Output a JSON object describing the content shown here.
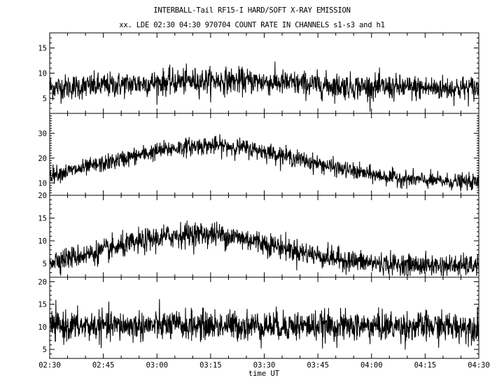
{
  "header": {
    "title": "INTERBALL-Tail RF15-I HARD/SOFT X-RAY EMISSION",
    "subtitle": "xx. LDE 02:30 04:30 970704  COUNT RATE IN CHANNELS s1-s3 and h1"
  },
  "chart_data": {
    "type": "line",
    "title": "INTERBALL-Tail RF15-I HARD/SOFT X-RAY EMISSION",
    "subtitle": "xx. LDE 02:30 04:30 970704  COUNT RATE IN CHANNELS s1-s3 and h1",
    "xlabel": "time UT",
    "xlim": [
      "02:30",
      "04:30"
    ],
    "x_ticks": [
      "02:30",
      "02:45",
      "03:00",
      "03:15",
      "03:30",
      "03:45",
      "04:00",
      "04:15",
      "04:30"
    ],
    "grid": false,
    "panels": [
      {
        "ylim": [
          2,
          18
        ],
        "y_ticks": [
          5,
          10,
          15
        ],
        "color": "#000000",
        "baseline": 7,
        "peak": {
          "time": "03:17",
          "value": 8.5,
          "width_min": 22
        },
        "noise": 1.6
      },
      {
        "ylim": [
          5,
          38
        ],
        "y_ticks": [
          10,
          20,
          30
        ],
        "color": "#000000",
        "baseline": 10,
        "peak": {
          "time": "03:15",
          "value": 25,
          "width_min": 26
        },
        "noise": 2.0
      },
      {
        "ylim": [
          2,
          20
        ],
        "y_ticks": [
          5,
          10,
          15,
          20
        ],
        "color": "#000000",
        "baseline": 4.5,
        "peak": {
          "time": "03:12",
          "value": 11.5,
          "width_min": 22
        },
        "noise": 1.5
      },
      {
        "ylim": [
          3,
          21
        ],
        "y_ticks": [
          5,
          10,
          15,
          20
        ],
        "color": "#000000",
        "baseline": 10,
        "peak": {
          "time": "03:15",
          "value": 10.3,
          "width_min": 30
        },
        "noise": 2.1
      }
    ]
  }
}
